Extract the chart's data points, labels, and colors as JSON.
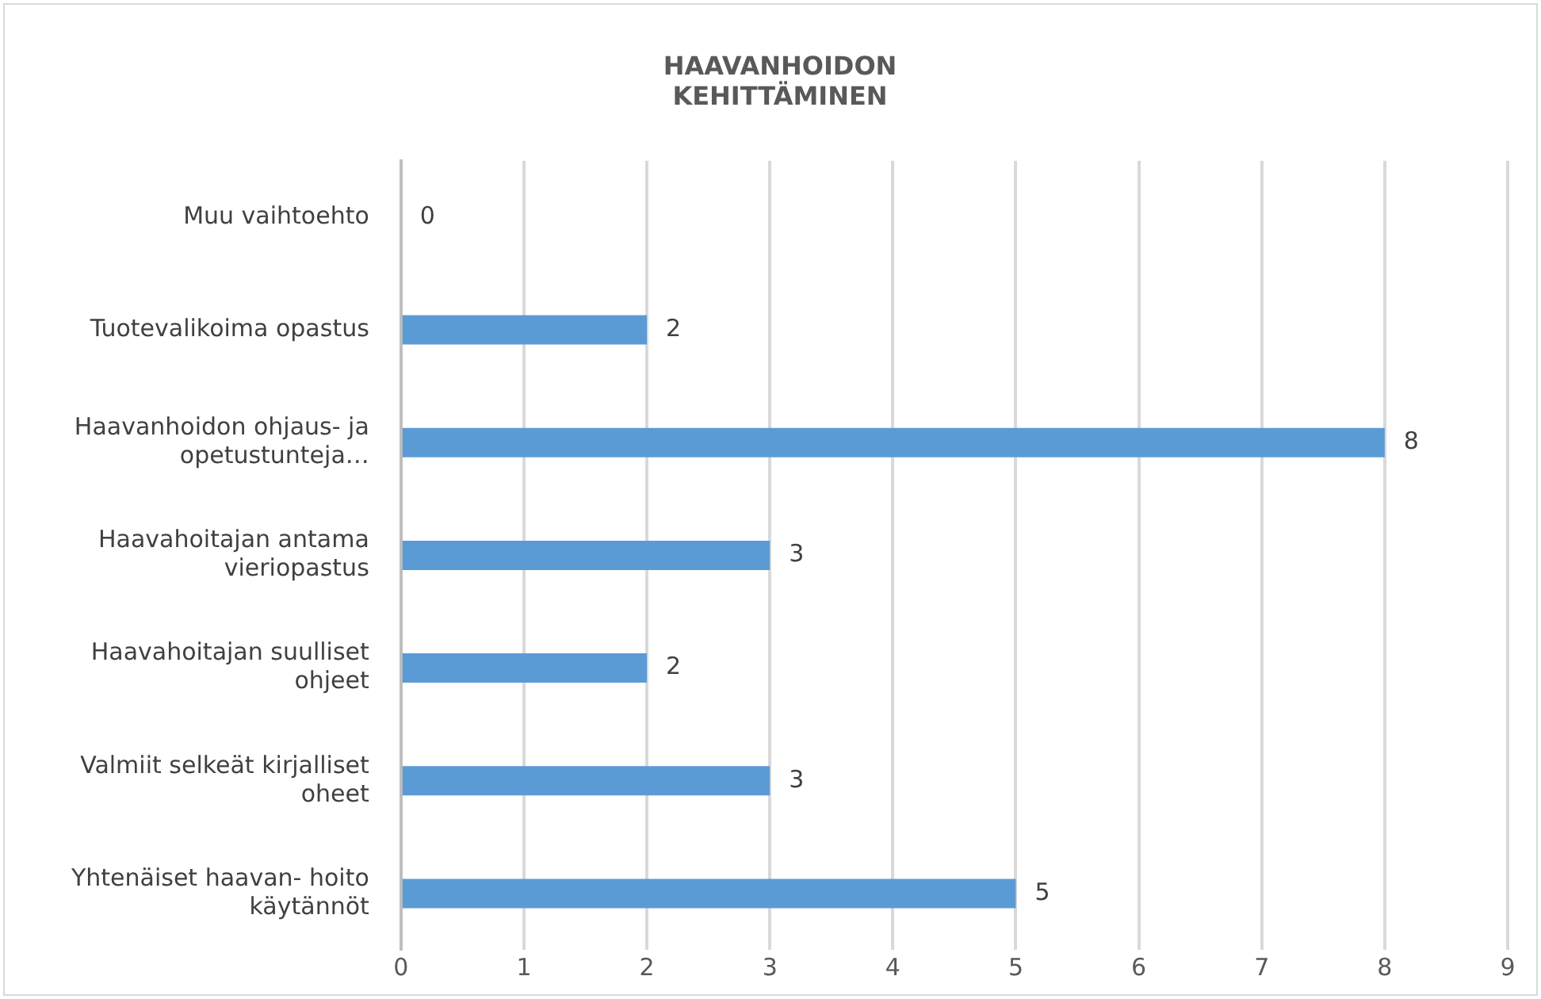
{
  "chart_data": {
    "type": "bar",
    "orientation": "horizontal",
    "title": "HAAVANHOIDON KEHITTÄMINEN",
    "categories": [
      "Muu vaihtoehto",
      "Tuotevalikoima opastus",
      "Haavanhoidon ohjaus- ja opetustunteja…",
      "Haavahoitajan antama vieriopastus",
      "Haavahoitajan suulliset ohjeet",
      "Valmiit selkeät kirjalliset oheet",
      "Yhtenäiset haavan- hoito käytännöt"
    ],
    "values": [
      0,
      2,
      8,
      3,
      2,
      3,
      5
    ],
    "color": "#5b9bd5",
    "xlim": [
      0,
      9
    ],
    "xticks": [
      0,
      1,
      2,
      3,
      4,
      5,
      6,
      7,
      8,
      9
    ],
    "grid": "x",
    "data_labels": true,
    "legend": false
  }
}
